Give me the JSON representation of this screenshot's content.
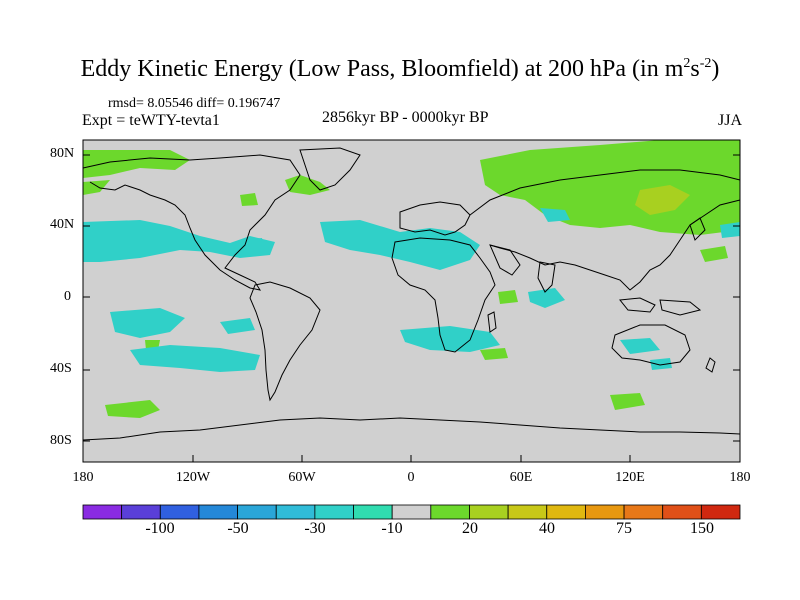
{
  "title_main": "Eddy Kinetic Energy (Low Pass, Bloomfield) at 200 hPa (in m",
  "title_sup1": "2",
  "title_s": "s",
  "title_sup2": "-2",
  "title_close": ")",
  "stats": "rmsd= 8.05546 diff= 0.196747",
  "expt": "Expt = teWTY-tevta1",
  "period": "2856kyr BP - 0000kyr BP",
  "season": "JJA",
  "y_labels": [
    "80N",
    "40N",
    "0",
    "40S",
    "80S"
  ],
  "x_labels": [
    "180",
    "120W",
    "60W",
    "0",
    "60E",
    "120E",
    "180"
  ],
  "colorbar": {
    "colors": [
      "#8a2be2",
      "#5a3fd8",
      "#3060e0",
      "#2488d8",
      "#2aa6d8",
      "#30bcd8",
      "#30d0c8",
      "#30dcb0",
      "#d0d0d0",
      "#6cd82c",
      "#a8d020",
      "#c8c818",
      "#e0b810",
      "#e89810",
      "#e87818",
      "#e05018",
      "#d02810"
    ],
    "labels": [
      "-100",
      "-50",
      "-30",
      "-10",
      "20",
      "40",
      "75",
      "150"
    ]
  },
  "map_colors": {
    "ocean": "#d0d0d0",
    "positive": "#6cd82c",
    "positive2": "#a8d020",
    "negative": "#30d0c8",
    "coast": "#000000"
  }
}
